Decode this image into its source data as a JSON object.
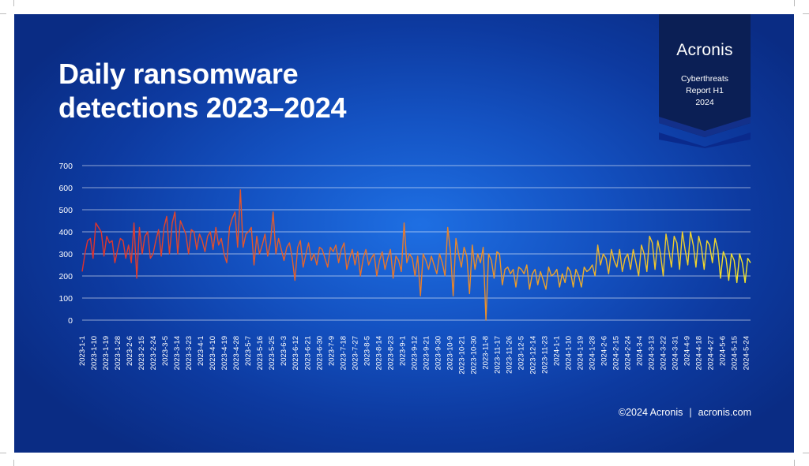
{
  "title": {
    "line1": "Daily ransomware",
    "line2": "detections 2023–2024"
  },
  "badge": {
    "brand": "Acronis",
    "line1": "Cyberthreats",
    "line2": "Report H1",
    "line3": "2024"
  },
  "footer": {
    "copyright": "©2024 Acronis",
    "separator": "|",
    "site": "acronis.com"
  },
  "colors": {
    "start": "#e0302c",
    "mid": "#e9842a",
    "end": "#f2e62c",
    "text": "#ffffff"
  },
  "chart_data": {
    "type": "line",
    "title": "",
    "xlabel": "",
    "ylabel": "",
    "ylim": [
      0,
      700
    ],
    "yticks": [
      0,
      100,
      200,
      300,
      400,
      500,
      600,
      700
    ],
    "grid": true,
    "x_start": "2023-1-1",
    "x_end": "2024-5-31",
    "xtick_labels": [
      "2023-1-1",
      "2023-1-10",
      "2023-1-19",
      "2023-1-28",
      "2023-2-6",
      "2023-2-15",
      "2023-2-24",
      "2023-3-5",
      "2023-3-14",
      "2023-3-23",
      "2023-4-1",
      "2023-4-10",
      "2023-4-19",
      "2023-4-28",
      "2023-5-7",
      "2023-5-16",
      "2023-5-25",
      "2023-6-3",
      "2023-6-12",
      "2023-6-21",
      "2023-6-30",
      "2023-7-9",
      "2023-7-18",
      "2023-7-27",
      "2023-8-5",
      "2023-8-14",
      "2023-8-23",
      "2023-9-1",
      "2023-9-12",
      "2023-9-21",
      "2023-9-30",
      "2023-10-9",
      "2023-10-21",
      "2023-10-30",
      "2023-11-8",
      "2023-11-17",
      "2023-11-26",
      "2023-12-5",
      "2023-12-14",
      "2023-11-23",
      "2024-1-1",
      "2024-1-10",
      "2024-1-19",
      "2024-1-28",
      "2024-2-6",
      "2024-2-15",
      "2024-2-24",
      "2024-3-4",
      "2024-3-13",
      "2024-3-22",
      "2024-3-31",
      "2024-4-9",
      "2024-4-18",
      "2024-4-27",
      "2024-5-6",
      "2024-5-15",
      "2024-5-24"
    ],
    "series": [
      {
        "values": [
          220,
          300,
          360,
          370,
          280,
          440,
          420,
          400,
          290,
          380,
          350,
          360,
          260,
          320,
          370,
          360,
          280,
          340,
          260,
          440,
          190,
          420,
          300,
          380,
          400,
          280,
          300,
          360,
          410,
          290,
          420,
          470,
          300,
          440,
          490,
          300,
          450,
          420,
          390,
          300,
          410,
          400,
          320,
          390,
          360,
          310,
          380,
          400,
          320,
          420,
          340,
          370,
          300,
          260,
          420,
          460,
          490,
          330,
          590,
          330,
          390,
          400,
          420,
          250,
          380,
          300,
          340,
          390,
          290,
          350,
          490,
          300,
          370,
          320,
          270,
          330,
          350,
          280,
          180,
          330,
          360,
          240,
          300,
          350,
          270,
          300,
          250,
          330,
          320,
          280,
          240,
          330,
          310,
          340,
          260,
          320,
          350,
          230,
          280,
          320,
          250,
          310,
          200,
          280,
          320,
          250,
          280,
          300,
          200,
          270,
          310,
          230,
          280,
          320,
          190,
          290,
          270,
          220,
          440,
          260,
          300,
          280,
          200,
          290,
          110,
          300,
          270,
          230,
          290,
          250,
          210,
          300,
          260,
          200,
          420,
          310,
          110,
          370,
          300,
          240,
          330,
          290,
          120,
          340,
          230,
          300,
          260,
          330,
          0,
          300,
          270,
          190,
          310,
          300,
          160,
          230,
          240,
          210,
          230,
          150,
          240,
          230,
          210,
          250,
          140,
          210,
          230,
          160,
          220,
          180,
          140,
          240,
          200,
          210,
          230,
          150,
          210,
          170,
          240,
          220,
          150,
          230,
          200,
          150,
          240,
          220,
          230,
          250,
          200,
          340,
          250,
          300,
          280,
          210,
          320,
          270,
          240,
          320,
          220,
          280,
          300,
          230,
          320,
          260,
          200,
          340,
          300,
          220,
          380,
          350,
          230,
          360,
          300,
          200,
          390,
          320,
          240,
          380,
          350,
          230,
          400,
          320,
          250,
          400,
          340,
          240,
          380,
          330,
          230,
          360,
          340,
          260,
          370,
          320,
          190,
          310,
          280,
          180,
          300,
          270,
          170,
          300,
          260,
          170,
          280,
          260
        ]
      }
    ]
  }
}
